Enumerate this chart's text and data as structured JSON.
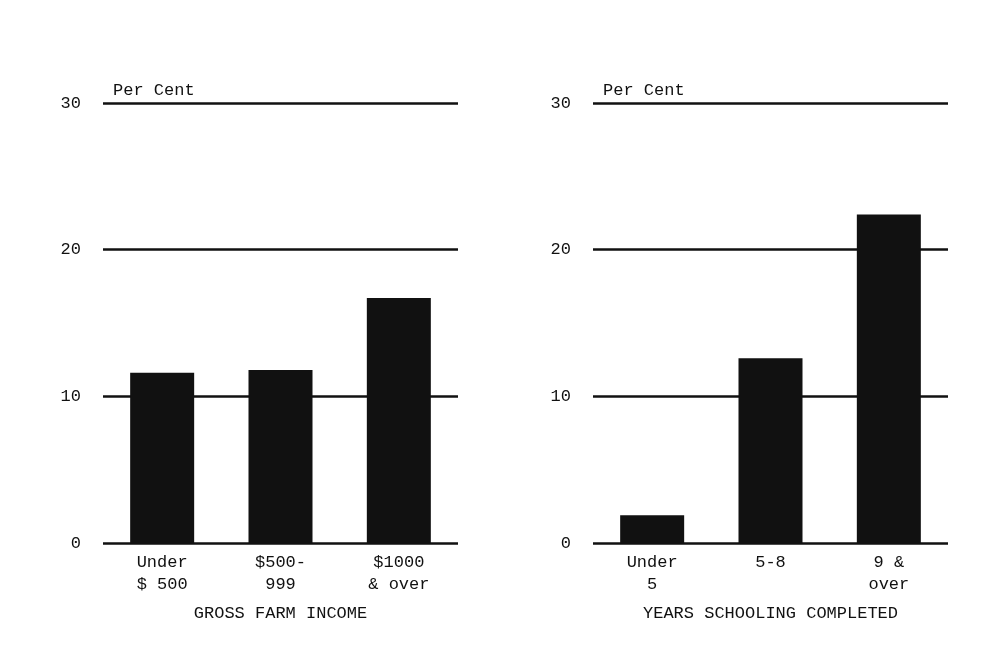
{
  "chart_data": [
    {
      "type": "bar",
      "categories": [
        "Under\n$ 500",
        "$500-\n999",
        "$1000\n& over"
      ],
      "values": [
        11.6,
        11.8,
        16.7
      ],
      "color": "#111111",
      "xlabel": "GROSS FARM INCOME",
      "ylabel": "Per Cent",
      "ylim": [
        0,
        30
      ],
      "yticks": [
        0,
        10,
        20,
        30
      ],
      "grid": "y"
    },
    {
      "type": "bar",
      "categories": [
        "Under\n5",
        "5-8",
        "9 &\nover"
      ],
      "values": [
        1.9,
        12.6,
        22.4
      ],
      "color": "#111111",
      "xlabel": "YEARS SCHOOLING COMPLETED",
      "ylabel": "Per Cent",
      "ylim": [
        0,
        30
      ],
      "yticks": [
        0,
        10,
        20,
        30
      ],
      "grid": "y"
    }
  ]
}
